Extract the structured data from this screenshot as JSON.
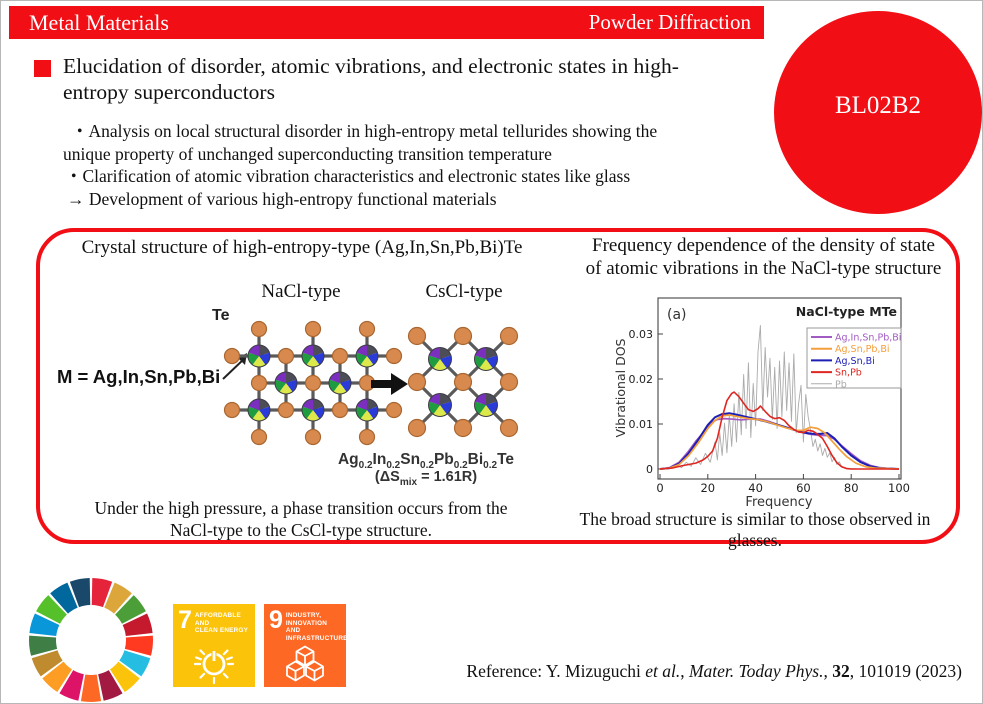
{
  "header": {
    "left": "Metal Materials",
    "right": "Powder Diffraction",
    "beamline": "BL02B2",
    "accent_color": "#f10e15"
  },
  "title": {
    "line1": "Elucidation of disorder, atomic vibrations, and electronic states in high-",
    "line2": "entropy superconductors"
  },
  "summary": {
    "lines": [
      "・Analysis on local structural disorder in high-entropy metal tellurides showing the",
      "unique property of unchanged superconducting transition temperature",
      "・Clarification of atomic vibration characteristics and electronic states like glass",
      "→ Development of various high-entropy functional materials"
    ]
  },
  "left_panel": {
    "title": "Crystal structure of high-entropy-type (Ag,In,Sn,Pb,Bi)Te",
    "nacl_label": "NaCl-type",
    "cscl_label": "CsCl-type",
    "te_label": "Te",
    "m_label": "M = Ag,In,Sn,Pb,Bi",
    "formula": {
      "e1": "Ag",
      "s1": "0.2",
      "e2": "In",
      "s2": "0.2",
      "e3": "Sn",
      "s3": "0.2",
      "e4": "Pb",
      "s4": "0.2",
      "e5": "Bi",
      "s5": "0.2",
      "e6": "Te"
    },
    "dsmix": {
      "p1": "(ΔS",
      "sub": "mix",
      "p2": " = 1.61R)"
    },
    "caption_line1": "Under the high pressure, a phase transition occurs from the",
    "caption_line2": "NaCl-type to the CsCl-type structure."
  },
  "right_panel": {
    "title_line1": "Frequency dependence of the density of state",
    "title_line2": "of atomic vibrations in the NaCl-type structure",
    "caption": "The broad structure is similar to those observed in glasses."
  },
  "chart_data": {
    "type": "line",
    "panel_label": "(a)",
    "title": "NaCl-type MTe",
    "xlabel": "Frequency",
    "ylabel": "Vibrational DOS",
    "xlim": [
      0,
      100
    ],
    "ylim": [
      0,
      0.038
    ],
    "xticks": [
      0,
      20,
      40,
      60,
      80,
      100
    ],
    "yticks": [
      0,
      0.01,
      0.02,
      0.03
    ],
    "ytick_labels": [
      "0",
      "0.01",
      "0.02",
      "0.03"
    ],
    "grid": false,
    "legend_position": "upper right",
    "series": [
      {
        "name": "Ag,In,Sn,Pb,Bi",
        "color": "#a35bc4",
        "width": 1.7,
        "points": [
          [
            0,
            0
          ],
          [
            4,
            0.0003
          ],
          [
            8,
            0.0015
          ],
          [
            12,
            0.004
          ],
          [
            15,
            0.0062
          ],
          [
            18,
            0.008
          ],
          [
            21,
            0.0102
          ],
          [
            24,
            0.011
          ],
          [
            27,
            0.0112
          ],
          [
            30,
            0.0111
          ],
          [
            34,
            0.0109
          ],
          [
            38,
            0.0111
          ],
          [
            42,
            0.0111
          ],
          [
            46,
            0.0105
          ],
          [
            50,
            0.0097
          ],
          [
            54,
            0.009
          ],
          [
            58,
            0.0084
          ],
          [
            62,
            0.0078
          ],
          [
            66,
            0.0075
          ],
          [
            70,
            0.0074
          ],
          [
            73,
            0.0066
          ],
          [
            76,
            0.0052
          ],
          [
            80,
            0.0034
          ],
          [
            84,
            0.0018
          ],
          [
            88,
            0.0008
          ],
          [
            92,
            0.0003
          ],
          [
            96,
            0.0001
          ],
          [
            100,
            0
          ]
        ]
      },
      {
        "name": "Ag,Sn,Pb,Bi",
        "color": "#f49f3a",
        "width": 1.7,
        "points": [
          [
            0,
            0
          ],
          [
            4,
            0.0002
          ],
          [
            8,
            0.001
          ],
          [
            12,
            0.003
          ],
          [
            16,
            0.0058
          ],
          [
            20,
            0.009
          ],
          [
            23,
            0.0108
          ],
          [
            26,
            0.0118
          ],
          [
            29,
            0.012
          ],
          [
            33,
            0.0116
          ],
          [
            37,
            0.0112
          ],
          [
            41,
            0.011
          ],
          [
            45,
            0.0105
          ],
          [
            49,
            0.0098
          ],
          [
            53,
            0.0091
          ],
          [
            57,
            0.0086
          ],
          [
            60,
            0.0086
          ],
          [
            63,
            0.0093
          ],
          [
            66,
            0.009
          ],
          [
            69,
            0.008
          ],
          [
            72,
            0.0062
          ],
          [
            75,
            0.0044
          ],
          [
            78,
            0.0028
          ],
          [
            82,
            0.0013
          ],
          [
            86,
            0.0005
          ],
          [
            90,
            0.0002
          ],
          [
            100,
            0
          ]
        ]
      },
      {
        "name": "Ag,Sn,Bi",
        "color": "#1c1eb4",
        "width": 2,
        "points": [
          [
            0,
            0
          ],
          [
            4,
            0.0002
          ],
          [
            8,
            0.0012
          ],
          [
            12,
            0.0035
          ],
          [
            16,
            0.0065
          ],
          [
            20,
            0.0098
          ],
          [
            23,
            0.0115
          ],
          [
            26,
            0.0122
          ],
          [
            29,
            0.0124
          ],
          [
            32,
            0.0121
          ],
          [
            36,
            0.0116
          ],
          [
            40,
            0.0111
          ],
          [
            44,
            0.0106
          ],
          [
            48,
            0.01
          ],
          [
            52,
            0.0094
          ],
          [
            56,
            0.0087
          ],
          [
            60,
            0.0081
          ],
          [
            64,
            0.0078
          ],
          [
            67,
            0.0078
          ],
          [
            70,
            0.008
          ],
          [
            73,
            0.0068
          ],
          [
            76,
            0.005
          ],
          [
            80,
            0.003
          ],
          [
            84,
            0.0015
          ],
          [
            88,
            0.0006
          ],
          [
            92,
            0.0002
          ],
          [
            100,
            0
          ]
        ]
      },
      {
        "name": "Sn,Pb",
        "color": "#df2620",
        "width": 1.6,
        "points": [
          [
            0,
            0
          ],
          [
            5,
            0.0002
          ],
          [
            9,
            0.0007
          ],
          [
            12,
            0.001
          ],
          [
            15,
            0.0013
          ],
          [
            18,
            0.002
          ],
          [
            20,
            0.0028
          ],
          [
            22,
            0.004
          ],
          [
            24,
            0.0068
          ],
          [
            26,
            0.0115
          ],
          [
            28,
            0.0152
          ],
          [
            30,
            0.0168
          ],
          [
            31,
            0.0171
          ],
          [
            33,
            0.0161
          ],
          [
            35,
            0.0146
          ],
          [
            37,
            0.0132
          ],
          [
            39,
            0.0128
          ],
          [
            41,
            0.0134
          ],
          [
            42,
            0.014
          ],
          [
            44,
            0.0128
          ],
          [
            46,
            0.0117
          ],
          [
            48,
            0.0112
          ],
          [
            50,
            0.0114
          ],
          [
            52,
            0.0108
          ],
          [
            54,
            0.0096
          ],
          [
            56,
            0.0088
          ],
          [
            58,
            0.0082
          ],
          [
            60,
            0.0081
          ],
          [
            62,
            0.0086
          ],
          [
            64,
            0.0084
          ],
          [
            66,
            0.0077
          ],
          [
            68,
            0.0068
          ],
          [
            70,
            0.005
          ],
          [
            72,
            0.003
          ],
          [
            74,
            0.0014
          ],
          [
            76,
            0.0005
          ],
          [
            78,
            0.0001
          ],
          [
            80,
            0
          ],
          [
            100,
            0
          ]
        ]
      },
      {
        "name": "Pb",
        "color": "#ababab",
        "width": 0.9,
        "points": [
          [
            0,
            0
          ],
          [
            5,
            0.0002
          ],
          [
            7,
            0.0008
          ],
          [
            9,
            0.0003
          ],
          [
            11,
            0.0015
          ],
          [
            13,
            0.0006
          ],
          [
            15,
            0.0025
          ],
          [
            17,
            0.001
          ],
          [
            19,
            0.0035
          ],
          [
            21,
            0.0015
          ],
          [
            23,
            0.006
          ],
          [
            24,
            0.002
          ],
          [
            25,
            0.008
          ],
          [
            26,
            0.003
          ],
          [
            27,
            0.0102
          ],
          [
            28,
            0.0036
          ],
          [
            29,
            0.012
          ],
          [
            30,
            0.005
          ],
          [
            31,
            0.0145
          ],
          [
            32,
            0.006
          ],
          [
            33,
            0.017
          ],
          [
            34,
            0.0076
          ],
          [
            35,
            0.021
          ],
          [
            36,
            0.009
          ],
          [
            37,
            0.0236
          ],
          [
            38,
            0.007
          ],
          [
            39,
            0.019
          ],
          [
            40,
            0.0096
          ],
          [
            41,
            0.026
          ],
          [
            42,
            0.0319
          ],
          [
            43,
            0.013
          ],
          [
            44,
            0.027
          ],
          [
            45,
            0.016
          ],
          [
            46,
            0.0246
          ],
          [
            47,
            0.011
          ],
          [
            48,
            0.0226
          ],
          [
            49,
            0.009
          ],
          [
            50,
            0.024
          ],
          [
            51,
            0.0116
          ],
          [
            52,
            0.026
          ],
          [
            53,
            0.013
          ],
          [
            54,
            0.0236
          ],
          [
            55,
            0.0106
          ],
          [
            56,
            0.0256
          ],
          [
            57,
            0.008
          ],
          [
            58,
            0.0146
          ],
          [
            59,
            0.0186
          ],
          [
            60,
            0.006
          ],
          [
            61,
            0.0166
          ],
          [
            62,
            0.0116
          ],
          [
            63,
            0.0086
          ],
          [
            64,
            0.005
          ],
          [
            65,
            0.0066
          ],
          [
            66,
            0.004
          ],
          [
            67,
            0.0056
          ],
          [
            68,
            0.003
          ],
          [
            69,
            0.0046
          ],
          [
            70,
            0.0026
          ],
          [
            71,
            0.0036
          ],
          [
            72,
            0.0016
          ],
          [
            73,
            0.0026
          ],
          [
            74,
            0.001
          ],
          [
            75,
            0.0016
          ],
          [
            76,
            0.0006
          ],
          [
            78,
            0.0002
          ],
          [
            80,
            0.0001
          ],
          [
            83,
            0
          ],
          [
            100,
            0
          ]
        ]
      }
    ],
    "draw_order": [
      4,
      0,
      2,
      1,
      3
    ]
  },
  "structure_colors": {
    "te_fill": "#d88a4e",
    "te_stroke": "#a96630",
    "bond": "#5a5a5a",
    "m_ring": "#3c3c44",
    "m_wedges": [
      "#4d4d57",
      "#2a3bd8",
      "#dde84a",
      "#1f9c40",
      "#7a2fbf"
    ]
  },
  "sdg": {
    "wheel_colors": [
      "#e5243b",
      "#dda63a",
      "#4c9f38",
      "#c5192d",
      "#ff3a21",
      "#26bde2",
      "#fcc30b",
      "#a21942",
      "#fd6925",
      "#dd1367",
      "#fd9d24",
      "#bf8b2e",
      "#3f7e44",
      "#0a97d9",
      "#56c02b",
      "#00689d",
      "#19486a"
    ],
    "goals": [
      {
        "number": "7",
        "label_line1": "AFFORDABLE AND",
        "label_line2": "CLEAN ENERGY",
        "color": "#fcc30b"
      },
      {
        "number": "9",
        "label_line1": "INDUSTRY, INNOVATION",
        "label_line2": "AND INFRASTRUCTURE",
        "color": "#fd6925"
      }
    ]
  },
  "reference": {
    "p1": "Reference: Y. Mizuguchi ",
    "etal": "et al.",
    "p2": ", ",
    "journal": "Mater. Today Phys.",
    "p3": ", ",
    "volume": "32",
    "p4": ", 101019 (2023)"
  }
}
